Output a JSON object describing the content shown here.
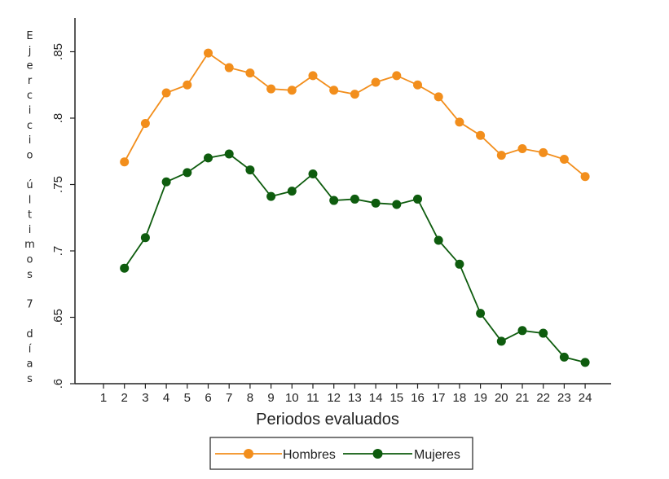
{
  "chart_data": {
    "type": "line",
    "title": "",
    "xlabel": "Periodos evaluados",
    "ylabel": "Ejercicio últimos 7 días",
    "ylim": [
      0.6,
      0.87
    ],
    "yticks": [
      {
        "value": 0.6,
        "label": ".6"
      },
      {
        "value": 0.65,
        "label": ".65"
      },
      {
        "value": 0.7,
        "label": ".7"
      },
      {
        "value": 0.75,
        "label": ".75"
      },
      {
        "value": 0.8,
        "label": ".8"
      },
      {
        "value": 0.85,
        "label": ".85"
      }
    ],
    "xlim": [
      0,
      25
    ],
    "x": [
      1,
      2,
      3,
      4,
      5,
      6,
      7,
      8,
      9,
      10,
      11,
      12,
      13,
      14,
      15,
      16,
      17,
      18,
      19,
      20,
      21,
      22,
      23,
      24
    ],
    "xtick_labels": [
      "1",
      "2",
      "3",
      "4",
      "5",
      "6",
      "7",
      "8",
      "9",
      "10",
      "11",
      "12",
      "13",
      "14",
      "15",
      "16",
      "17",
      "18",
      "19",
      "20",
      "21",
      "22",
      "23",
      "24"
    ],
    "series": [
      {
        "name": "Hombres",
        "color": "#f28e1c",
        "x": [
          2,
          3,
          4,
          5,
          6,
          7,
          8,
          9,
          10,
          11,
          12,
          13,
          14,
          15,
          16,
          17,
          18,
          19,
          20,
          21,
          22,
          23,
          24
        ],
        "values": [
          0.767,
          0.796,
          0.819,
          0.825,
          0.849,
          0.838,
          0.834,
          0.822,
          0.821,
          0.832,
          0.821,
          0.818,
          0.827,
          0.832,
          0.825,
          0.816,
          0.797,
          0.787,
          0.772,
          0.777,
          0.774,
          0.769,
          0.756
        ]
      },
      {
        "name": "Mujeres",
        "color": "#0e5c0e",
        "x": [
          2,
          3,
          4,
          5,
          6,
          7,
          8,
          9,
          10,
          11,
          12,
          13,
          14,
          15,
          16,
          17,
          18,
          19,
          20,
          21,
          22,
          23,
          24
        ],
        "values": [
          0.687,
          0.71,
          0.752,
          0.759,
          0.77,
          0.773,
          0.761,
          0.741,
          0.745,
          0.758,
          0.738,
          0.739,
          0.736,
          0.735,
          0.739,
          0.708,
          0.69,
          0.653,
          0.632,
          0.64,
          0.638,
          0.62,
          0.616
        ]
      }
    ],
    "grid": false,
    "legend": "bottom"
  }
}
